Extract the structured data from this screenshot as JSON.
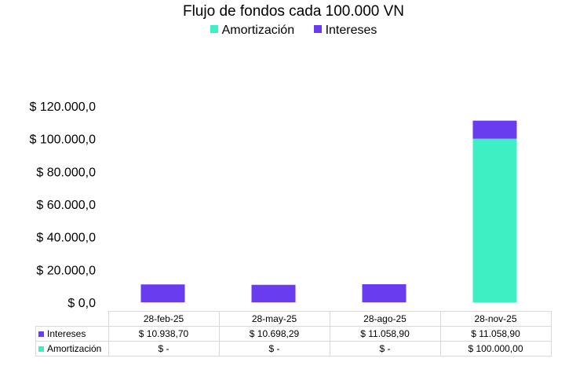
{
  "chart_data": {
    "type": "bar",
    "stacked": true,
    "title": "Flujo de fondos cada 100.000 VN",
    "categories": [
      "28-feb-25",
      "28-may-25",
      "28-ago-25",
      "28-nov-25"
    ],
    "series": [
      {
        "name": "Amortización",
        "color": "#3fefc4",
        "values": [
          0,
          0,
          0,
          100000.0
        ],
        "table_values": [
          "$ -",
          "$ -",
          "$ -",
          "$ 100.000,00"
        ]
      },
      {
        "name": "Intereses",
        "color": "#6a3cf0",
        "values": [
          10938.7,
          10698.29,
          11058.9,
          11058.9
        ],
        "table_values": [
          "$ 10.938,70",
          "$ 10.698,29",
          "$ 11.058,90",
          "$ 11.058,90"
        ]
      }
    ],
    "legend_order": [
      "Amortización",
      "Intereses"
    ],
    "table_row_order": [
      "Intereses",
      "Amortización"
    ],
    "yticks": [
      "$ 0,0",
      "$ 20.000,0",
      "$ 40.000,0",
      "$ 60.000,0",
      "$ 80.000,0",
      "$ 100.000,0",
      "$ 120.000,0"
    ],
    "ylim": [
      0,
      120000
    ],
    "grid": false,
    "legend_position": "top"
  }
}
